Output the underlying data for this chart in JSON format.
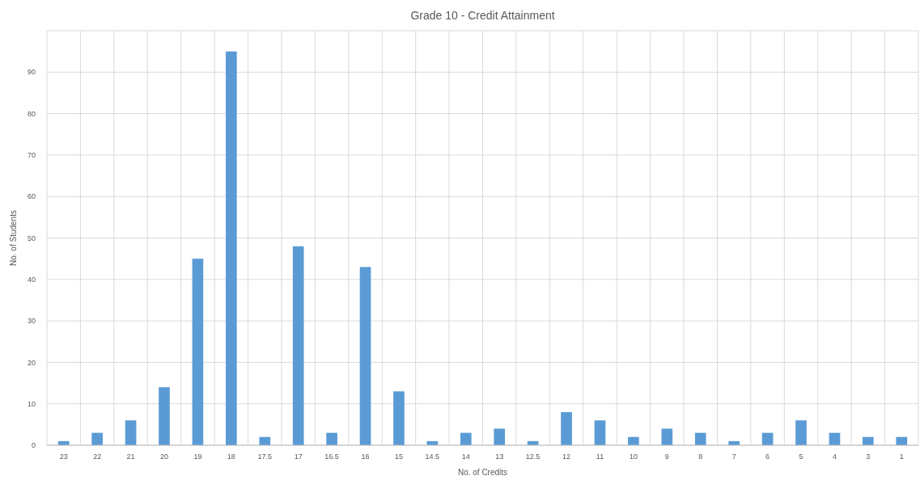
{
  "chart_data": {
    "type": "bar",
    "title": "Grade 10 - Credit Attainment",
    "xlabel": "No. of Credits",
    "ylabel": "No. of Students",
    "categories": [
      "23",
      "22",
      "21",
      "20",
      "19",
      "18",
      "17.5",
      "17",
      "16.5",
      "16",
      "15",
      "14.5",
      "14",
      "13",
      "12.5",
      "12",
      "11",
      "10",
      "9",
      "8",
      "7",
      "6",
      "5",
      "4",
      "3",
      "1"
    ],
    "values": [
      1,
      3,
      6,
      14,
      45,
      95,
      2,
      48,
      3,
      43,
      13,
      1,
      3,
      4,
      1,
      8,
      6,
      2,
      4,
      3,
      1,
      3,
      6,
      3,
      2,
      2
    ],
    "color": "#5b9bd5",
    "ylim": [
      0,
      100
    ],
    "yticks": [
      0,
      10,
      20,
      30,
      40,
      50,
      60,
      70,
      80,
      90
    ],
    "grid": true
  }
}
